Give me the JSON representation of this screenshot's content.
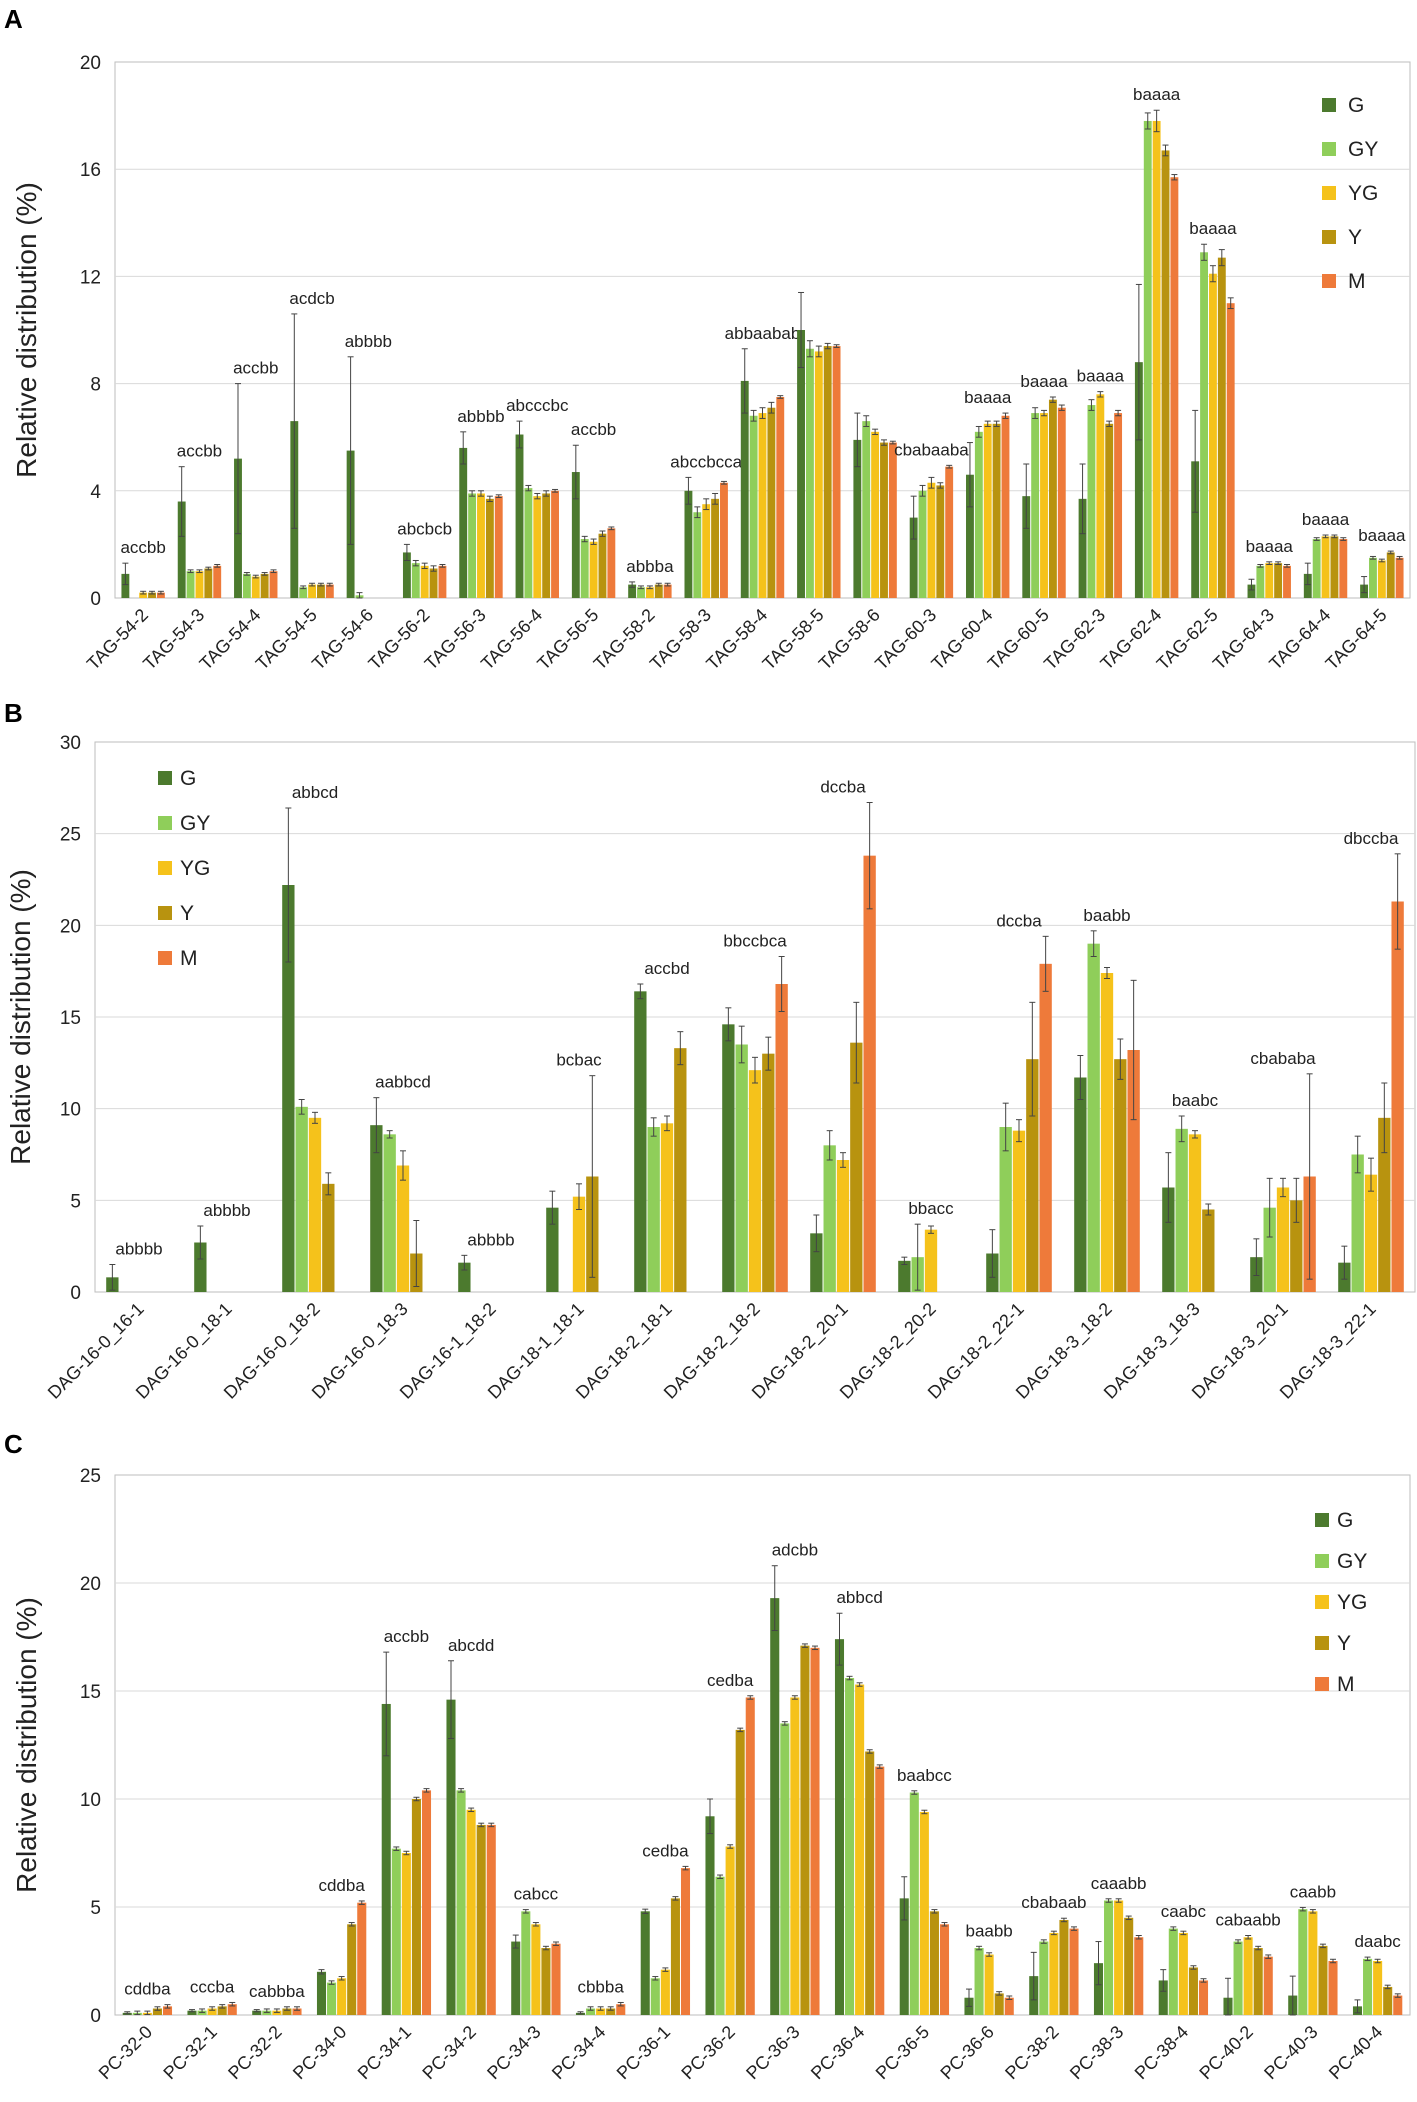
{
  "colors": {
    "G": "#4c7a2e",
    "GY": "#8fce5a",
    "YG": "#f5c21b",
    "Y": "#b8930f",
    "M": "#ee7a3a"
  },
  "chart_data": [
    {
      "panel": "A",
      "type": "bar",
      "ylabel": "Relative distribution (%)",
      "ylim": [
        0,
        20
      ],
      "yticks": [
        0,
        4,
        8,
        12,
        16,
        20
      ],
      "legend_position": "top-right",
      "categories": [
        "TAG-54-2",
        "TAG-54-3",
        "TAG-54-4",
        "TAG-54-5",
        "TAG-54-6",
        "TAG-56-2",
        "TAG-56-3",
        "TAG-56-4",
        "TAG-56-5",
        "TAG-58-2",
        "TAG-58-3",
        "TAG-58-4",
        "TAG-58-5",
        "TAG-58-6",
        "TAG-60-3",
        "TAG-60-4",
        "TAG-60-5",
        "TAG-62-3",
        "TAG-62-4",
        "TAG-62-5",
        "TAG-64-3",
        "TAG-64-4",
        "TAG-64-5"
      ],
      "letters": [
        "accbb",
        "accbb",
        "accbb",
        "acdcb",
        "abbbb",
        "abcbcb",
        "abbbb",
        "abcccbc",
        "accbb",
        "abbba",
        "abccbcca",
        "abbaabab",
        "",
        "",
        "cbabaaba",
        "baaaa",
        "baaaa",
        "baaaa",
        "baaaa",
        "baaaa",
        "baaaa",
        "baaaa",
        "baaaa"
      ],
      "series": [
        {
          "name": "G",
          "values": [
            0.9,
            3.6,
            5.2,
            6.6,
            5.5,
            1.7,
            5.6,
            6.1,
            4.7,
            0.5,
            4.0,
            8.1,
            10.0,
            5.9,
            3.0,
            4.6,
            3.8,
            3.7,
            8.8,
            5.1,
            0.5,
            0.9,
            0.5
          ],
          "errors": [
            0.4,
            1.3,
            2.8,
            4.0,
            3.5,
            0.3,
            0.6,
            0.5,
            1.0,
            0.1,
            0.5,
            1.2,
            1.4,
            1.0,
            0.8,
            1.2,
            1.2,
            1.3,
            2.9,
            1.9,
            0.2,
            0.4,
            0.3
          ]
        },
        {
          "name": "GY",
          "values": [
            0.0,
            1.0,
            0.9,
            0.4,
            0.1,
            1.3,
            3.9,
            4.1,
            2.2,
            0.4,
            3.2,
            6.8,
            9.3,
            6.6,
            4.0,
            6.2,
            6.9,
            7.2,
            17.8,
            12.9,
            1.2,
            2.2,
            1.5
          ],
          "errors": [
            0,
            0.05,
            0.05,
            0.05,
            0.1,
            0.1,
            0.1,
            0.1,
            0.1,
            0.05,
            0.2,
            0.2,
            0.3,
            0.2,
            0.2,
            0.2,
            0.2,
            0.2,
            0.3,
            0.3,
            0.05,
            0.05,
            0.05
          ]
        },
        {
          "name": "YG",
          "values": [
            0.2,
            1.0,
            0.8,
            0.5,
            0,
            1.2,
            3.9,
            3.8,
            2.1,
            0.4,
            3.5,
            6.9,
            9.2,
            6.2,
            4.3,
            6.5,
            6.9,
            7.6,
            17.8,
            12.1,
            1.3,
            2.3,
            1.4
          ],
          "errors": [
            0.05,
            0.05,
            0.05,
            0.05,
            0,
            0.1,
            0.1,
            0.1,
            0.1,
            0.05,
            0.2,
            0.2,
            0.2,
            0.1,
            0.2,
            0.1,
            0.1,
            0.1,
            0.4,
            0.3,
            0.05,
            0.05,
            0.05
          ]
        },
        {
          "name": "Y",
          "values": [
            0.2,
            1.1,
            0.9,
            0.5,
            0,
            1.1,
            3.7,
            3.9,
            2.4,
            0.5,
            3.7,
            7.1,
            9.4,
            5.8,
            4.2,
            6.5,
            7.4,
            6.5,
            16.7,
            12.7,
            1.3,
            2.3,
            1.7
          ],
          "errors": [
            0.05,
            0.05,
            0.05,
            0.05,
            0,
            0.1,
            0.1,
            0.1,
            0.1,
            0.05,
            0.2,
            0.2,
            0.1,
            0.1,
            0.1,
            0.1,
            0.1,
            0.1,
            0.2,
            0.3,
            0.05,
            0.05,
            0.05
          ]
        },
        {
          "name": "M",
          "values": [
            0.2,
            1.2,
            1.0,
            0.5,
            0,
            1.2,
            3.8,
            4.0,
            2.6,
            0.5,
            4.3,
            7.5,
            9.4,
            5.8,
            4.9,
            6.8,
            7.1,
            6.9,
            15.7,
            11.0,
            1.2,
            2.2,
            1.5
          ],
          "errors": [
            0.05,
            0.05,
            0.05,
            0.05,
            0,
            0.05,
            0.05,
            0.05,
            0.05,
            0.05,
            0.05,
            0.05,
            0.05,
            0.05,
            0.05,
            0.1,
            0.1,
            0.1,
            0.1,
            0.2,
            0.05,
            0.05,
            0.05
          ]
        }
      ]
    },
    {
      "panel": "B",
      "type": "bar",
      "ylabel": "Relative distribution (%)",
      "ylim": [
        0,
        30
      ],
      "yticks": [
        0,
        5,
        10,
        15,
        20,
        25,
        30
      ],
      "legend_position": "top-left",
      "categories": [
        "DAG-16-0_16-1",
        "DAG-16-0_18-1",
        "DAG-16-0_18-2",
        "DAG-16-0_18-3",
        "DAG-16-1_18-2",
        "DAG-18-1_18-1",
        "DAG-18-2_18-1",
        "DAG-18-2_18-2",
        "DAG-18-2_20-1",
        "DAG-18-2_20-2",
        "DAG-18-2_22-1",
        "DAG-18-3_18-2",
        "DAG-18-3_18-3",
        "DAG-18-3_20-1",
        "DAG-18-3_22-1"
      ],
      "letters": [
        "abbbb",
        "abbbb",
        "abbcd",
        "aabbcd",
        "abbbb",
        "bcbac",
        "accbd",
        "bbccbca",
        "dccba",
        "bbacc",
        "dccba",
        "baabb",
        "baabc",
        "cbababa",
        "dbccba"
      ],
      "series": [
        {
          "name": "G",
          "values": [
            0.8,
            2.7,
            22.2,
            9.1,
            1.6,
            4.6,
            16.4,
            14.6,
            3.2,
            1.7,
            2.1,
            11.7,
            5.7,
            1.9,
            1.6
          ],
          "errors": [
            0.7,
            0.9,
            4.2,
            1.5,
            0.4,
            0.9,
            0.4,
            0.9,
            1.0,
            0.2,
            1.3,
            1.2,
            1.9,
            1.0,
            0.9
          ]
        },
        {
          "name": "GY",
          "values": [
            0,
            0,
            10.1,
            8.6,
            0,
            0,
            9.0,
            13.5,
            8.0,
            1.9,
            9.0,
            19.0,
            8.9,
            4.6,
            7.5
          ],
          "errors": [
            0,
            0,
            0.4,
            0.2,
            0,
            0,
            0.5,
            1.0,
            0.8,
            1.8,
            1.3,
            0.7,
            0.7,
            1.6,
            1.0
          ]
        },
        {
          "name": "YG",
          "values": [
            0,
            0,
            9.5,
            6.9,
            0,
            5.2,
            9.2,
            12.1,
            7.2,
            3.4,
            8.8,
            17.4,
            8.6,
            5.7,
            6.4
          ],
          "errors": [
            0,
            0,
            0.3,
            0.8,
            0,
            0.7,
            0.4,
            0.7,
            0.4,
            0.2,
            0.6,
            0.3,
            0.2,
            0.5,
            0.9
          ]
        },
        {
          "name": "Y",
          "values": [
            0,
            0,
            5.9,
            2.1,
            0,
            6.3,
            13.3,
            13.0,
            13.6,
            0,
            12.7,
            12.7,
            4.5,
            5.0,
            9.5
          ],
          "errors": [
            0,
            0,
            0.6,
            1.8,
            0,
            5.5,
            0.9,
            0.9,
            2.2,
            0,
            3.1,
            1.1,
            0.3,
            1.2,
            1.9
          ]
        },
        {
          "name": "M",
          "values": [
            0,
            0,
            0,
            0,
            0,
            0,
            0,
            16.8,
            23.8,
            0,
            17.9,
            13.2,
            0,
            6.3,
            21.3
          ],
          "errors": [
            0,
            0,
            0,
            0,
            0,
            0,
            0,
            1.5,
            2.9,
            0,
            1.5,
            3.8,
            0,
            5.6,
            2.6
          ]
        }
      ]
    },
    {
      "panel": "C",
      "type": "bar",
      "ylabel": "Relative distribution (%)",
      "ylim": [
        0,
        25
      ],
      "yticks": [
        0,
        5,
        10,
        15,
        20,
        25
      ],
      "legend_position": "top-right",
      "categories": [
        "PC-32-0",
        "PC-32-1",
        "PC-32-2",
        "PC-34-0",
        "PC-34-1",
        "PC-34-2",
        "PC-34-3",
        "PC-34-4",
        "PC-36-1",
        "PC-36-2",
        "PC-36-3",
        "PC-36-4",
        "PC-36-5",
        "PC-36-6",
        "PC-38-2",
        "PC-38-3",
        "PC-38-4",
        "PC-40-2",
        "PC-40-3",
        "PC-40-4"
      ],
      "letters": [
        "cddba",
        "cccba",
        "cabbba",
        "cddba",
        "accbb",
        "abcdd",
        "cabcc",
        "cbbba",
        "cedba",
        "cedba",
        "adcbb",
        "abbcd",
        "baabcc",
        "baabb",
        "cbabaab",
        "caaabb",
        "caabc",
        "cabaabb",
        "caabb",
        "daabc"
      ],
      "series": [
        {
          "name": "G",
          "values": [
            0.1,
            0.2,
            0.2,
            2.0,
            14.4,
            14.6,
            3.4,
            0.1,
            4.8,
            9.2,
            19.3,
            17.4,
            5.4,
            0.8,
            1.8,
            2.4,
            1.6,
            0.8,
            0.9,
            0.4
          ],
          "errors": [
            0.05,
            0.05,
            0.05,
            0.1,
            2.4,
            1.8,
            0.3,
            0.05,
            0.1,
            0.8,
            1.5,
            1.2,
            1.0,
            0.4,
            1.1,
            1.0,
            0.5,
            0.9,
            0.9,
            0.3
          ]
        },
        {
          "name": "GY",
          "values": [
            0.1,
            0.2,
            0.2,
            1.5,
            7.7,
            10.4,
            4.8,
            0.3,
            1.7,
            6.4,
            13.5,
            15.6,
            10.3,
            3.1,
            3.4,
            5.3,
            4.0,
            3.4,
            4.9,
            2.6
          ]
        },
        {
          "name": "YG",
          "values": [
            0.1,
            0.3,
            0.2,
            1.7,
            7.5,
            9.5,
            4.2,
            0.3,
            2.1,
            7.8,
            14.7,
            15.3,
            9.4,
            2.8,
            3.8,
            5.3,
            3.8,
            3.6,
            4.8,
            2.5
          ]
        },
        {
          "name": "Y",
          "values": [
            0.3,
            0.4,
            0.3,
            4.2,
            10.0,
            8.8,
            3.1,
            0.3,
            5.4,
            13.2,
            17.1,
            12.2,
            4.8,
            1.0,
            4.4,
            4.5,
            2.2,
            3.1,
            3.2,
            1.3
          ]
        },
        {
          "name": "M",
          "values": [
            0.4,
            0.5,
            0.3,
            5.2,
            10.4,
            8.8,
            3.3,
            0.5,
            6.8,
            14.7,
            17.0,
            11.5,
            4.2,
            0.8,
            4.0,
            3.6,
            1.6,
            2.7,
            2.5,
            0.9
          ]
        }
      ]
    }
  ]
}
